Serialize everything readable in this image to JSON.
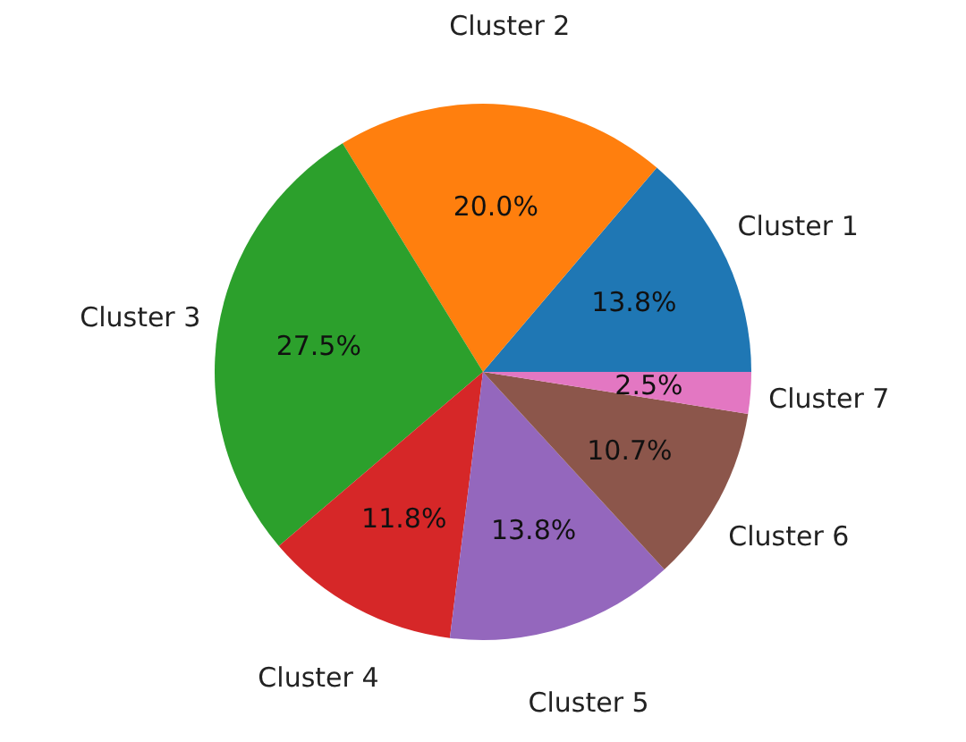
{
  "chart_data": {
    "type": "pie",
    "categories": [
      "Cluster 1",
      "Cluster 2",
      "Cluster 3",
      "Cluster 4",
      "Cluster 5",
      "Cluster 6",
      "Cluster 7"
    ],
    "values": [
      13.8,
      20.0,
      27.5,
      11.8,
      13.8,
      10.7,
      2.5
    ],
    "value_labels": [
      "13.8%",
      "20.0%",
      "27.5%",
      "11.8%",
      "13.8%",
      "10.7%",
      "2.5%"
    ],
    "colors": [
      "#1f77b4",
      "#ff7f0e",
      "#2ca02c",
      "#d62728",
      "#9467bd",
      "#8c564b",
      "#e377c2"
    ]
  }
}
